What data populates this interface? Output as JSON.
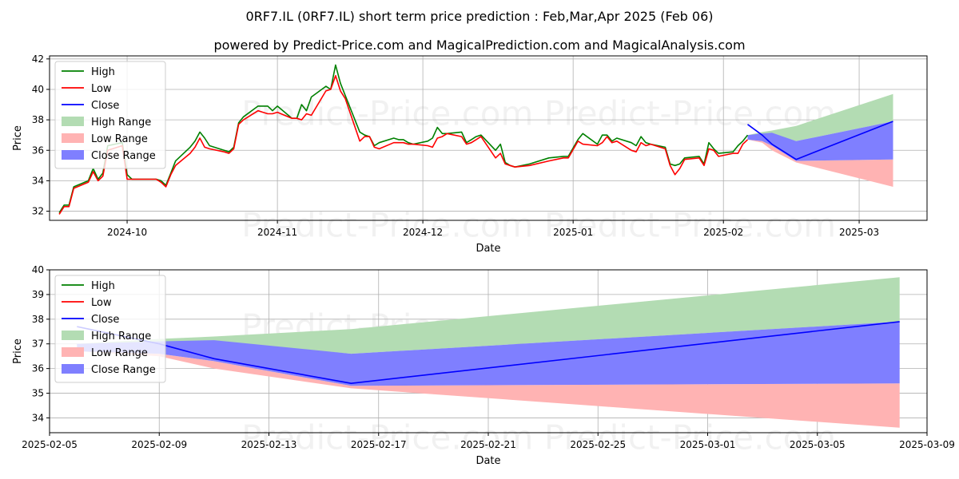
{
  "chart_data": [
    {
      "type": "line",
      "title": "0RF7.IL (0RF7.IL) short term price prediction : Feb,Mar,Apr 2025 (Feb 06)",
      "subtitle": "powered by Predict-Price.com and MagicalPrediction.com and MagicalAnalysis.com",
      "watermark": "Predict-Price.com",
      "xlabel": "Date",
      "ylabel": "Price",
      "xlim": [
        "2024-09-15",
        "2025-03-15"
      ],
      "ylim": [
        31.4,
        42.2
      ],
      "x_ticks": [
        "2024-10",
        "2024-11",
        "2024-12",
        "2025-01",
        "2025-02",
        "2025-03"
      ],
      "x_tick_dates": [
        "2024-10-01",
        "2024-11-01",
        "2024-12-01",
        "2025-01-01",
        "2025-02-01",
        "2025-03-01"
      ],
      "y_ticks": [
        32,
        34,
        36,
        38,
        40,
        42
      ],
      "grid": true,
      "legend_position": "upper-left",
      "legend": [
        "High",
        "Low",
        "Close",
        "High Range",
        "Low Range",
        "Close Range"
      ],
      "colors": {
        "high": "#008000",
        "low": "#ff0000",
        "close": "#0000ff",
        "high_range": "#b3dcb3",
        "low_range": "#ffb3b3",
        "close_range": "#7f7fff"
      },
      "series": [
        {
          "name": "High",
          "x": [
            "2024-09-17",
            "2024-09-18",
            "2024-09-19",
            "2024-09-20",
            "2024-09-23",
            "2024-09-24",
            "2024-09-25",
            "2024-09-26",
            "2024-09-27",
            "2024-09-30",
            "2024-10-01",
            "2024-10-02",
            "2024-10-03",
            "2024-10-07",
            "2024-10-08",
            "2024-10-09",
            "2024-10-10",
            "2024-10-11",
            "2024-10-14",
            "2024-10-15",
            "2024-10-16",
            "2024-10-17",
            "2024-10-18",
            "2024-10-21",
            "2024-10-22",
            "2024-10-23",
            "2024-10-24",
            "2024-10-25",
            "2024-10-28",
            "2024-10-29",
            "2024-10-30",
            "2024-10-31",
            "2024-11-01",
            "2024-11-04",
            "2024-11-05",
            "2024-11-06",
            "2024-11-07",
            "2024-11-08",
            "2024-11-11",
            "2024-11-12",
            "2024-11-13",
            "2024-11-14",
            "2024-11-15",
            "2024-11-18",
            "2024-11-19",
            "2024-11-20",
            "2024-11-21",
            "2024-11-22",
            "2024-11-25",
            "2024-11-26",
            "2024-11-27",
            "2024-11-28",
            "2024-11-29",
            "2024-12-02",
            "2024-12-03",
            "2024-12-04",
            "2024-12-05",
            "2024-12-06",
            "2024-12-09",
            "2024-12-10",
            "2024-12-11",
            "2024-12-12",
            "2024-12-13",
            "2024-12-16",
            "2024-12-17",
            "2024-12-18",
            "2024-12-19",
            "2024-12-20",
            "2024-12-23",
            "2024-12-27",
            "2024-12-30",
            "2024-12-31",
            "2025-01-02",
            "2025-01-03",
            "2025-01-06",
            "2025-01-07",
            "2025-01-08",
            "2025-01-09",
            "2025-01-10",
            "2025-01-13",
            "2025-01-14",
            "2025-01-15",
            "2025-01-16",
            "2025-01-17",
            "2025-01-20",
            "2025-01-21",
            "2025-01-22",
            "2025-01-23",
            "2025-01-24",
            "2025-01-27",
            "2025-01-28",
            "2025-01-29",
            "2025-01-30",
            "2025-01-31",
            "2025-02-03",
            "2025-02-04",
            "2025-02-05",
            "2025-02-06"
          ],
          "y": [
            31.9,
            32.4,
            32.4,
            33.6,
            34.0,
            34.8,
            34.1,
            34.5,
            36.3,
            36.5,
            34.4,
            34.1,
            34.1,
            34.1,
            34.0,
            33.7,
            34.5,
            35.3,
            36.2,
            36.6,
            37.2,
            36.8,
            36.3,
            36.0,
            35.9,
            36.2,
            37.8,
            38.2,
            38.9,
            38.9,
            38.9,
            38.6,
            38.9,
            38.1,
            38.1,
            39.0,
            38.6,
            39.5,
            40.2,
            40.0,
            41.6,
            40.4,
            39.6,
            37.2,
            37.0,
            36.9,
            36.3,
            36.5,
            36.8,
            36.7,
            36.7,
            36.5,
            36.4,
            36.6,
            36.8,
            37.5,
            37.1,
            37.1,
            37.2,
            36.5,
            36.7,
            36.9,
            37.0,
            36.0,
            36.4,
            35.2,
            35.0,
            34.9,
            35.1,
            35.5,
            35.6,
            35.6,
            36.7,
            37.1,
            36.4,
            37.0,
            37.0,
            36.6,
            36.8,
            36.5,
            36.3,
            36.9,
            36.5,
            36.4,
            36.2,
            35.1,
            35.0,
            35.1,
            35.5,
            35.6,
            35.1,
            36.5,
            36.1,
            35.8,
            35.9,
            36.3,
            36.6,
            37.0
          ]
        },
        {
          "name": "Low",
          "x": [
            "2024-09-17",
            "2024-09-18",
            "2024-09-19",
            "2024-09-20",
            "2024-09-23",
            "2024-09-24",
            "2024-09-25",
            "2024-09-26",
            "2024-09-27",
            "2024-09-30",
            "2024-10-01",
            "2024-10-02",
            "2024-10-03",
            "2024-10-07",
            "2024-10-08",
            "2024-10-09",
            "2024-10-10",
            "2024-10-11",
            "2024-10-14",
            "2024-10-15",
            "2024-10-16",
            "2024-10-17",
            "2024-10-18",
            "2024-10-21",
            "2024-10-22",
            "2024-10-23",
            "2024-10-24",
            "2024-10-25",
            "2024-10-28",
            "2024-10-29",
            "2024-10-30",
            "2024-10-31",
            "2024-11-01",
            "2024-11-04",
            "2024-11-05",
            "2024-11-06",
            "2024-11-07",
            "2024-11-08",
            "2024-11-11",
            "2024-11-12",
            "2024-11-13",
            "2024-11-14",
            "2024-11-15",
            "2024-11-18",
            "2024-11-19",
            "2024-11-20",
            "2024-11-21",
            "2024-11-22",
            "2024-11-25",
            "2024-11-26",
            "2024-11-27",
            "2024-11-28",
            "2024-11-29",
            "2024-12-02",
            "2024-12-03",
            "2024-12-04",
            "2024-12-05",
            "2024-12-06",
            "2024-12-09",
            "2024-12-10",
            "2024-12-11",
            "2024-12-12",
            "2024-12-13",
            "2024-12-16",
            "2024-12-17",
            "2024-12-18",
            "2024-12-19",
            "2024-12-20",
            "2024-12-23",
            "2024-12-27",
            "2024-12-30",
            "2024-12-31",
            "2025-01-02",
            "2025-01-03",
            "2025-01-06",
            "2025-01-07",
            "2025-01-08",
            "2025-01-09",
            "2025-01-10",
            "2025-01-13",
            "2025-01-14",
            "2025-01-15",
            "2025-01-16",
            "2025-01-17",
            "2025-01-20",
            "2025-01-21",
            "2025-01-22",
            "2025-01-23",
            "2025-01-24",
            "2025-01-27",
            "2025-01-28",
            "2025-01-29",
            "2025-01-30",
            "2025-01-31",
            "2025-02-03",
            "2025-02-04",
            "2025-02-05",
            "2025-02-06"
          ],
          "y": [
            31.8,
            32.3,
            32.3,
            33.5,
            33.9,
            34.6,
            34.0,
            34.3,
            36.0,
            36.3,
            34.1,
            34.1,
            34.1,
            34.1,
            33.9,
            33.6,
            34.4,
            35.0,
            35.8,
            36.2,
            36.8,
            36.2,
            36.1,
            35.9,
            35.8,
            36.1,
            37.7,
            38.0,
            38.6,
            38.5,
            38.4,
            38.4,
            38.5,
            38.1,
            38.1,
            38.0,
            38.4,
            38.3,
            39.9,
            40.0,
            40.9,
            39.9,
            39.4,
            36.6,
            36.9,
            36.9,
            36.2,
            36.1,
            36.5,
            36.5,
            36.5,
            36.4,
            36.4,
            36.3,
            36.2,
            36.8,
            36.9,
            37.1,
            36.9,
            36.4,
            36.5,
            36.7,
            36.9,
            35.5,
            35.8,
            35.1,
            35.0,
            34.9,
            35.0,
            35.3,
            35.5,
            35.5,
            36.6,
            36.4,
            36.3,
            36.5,
            36.9,
            36.5,
            36.6,
            36.0,
            35.9,
            36.5,
            36.3,
            36.4,
            36.1,
            35.0,
            34.4,
            34.8,
            35.4,
            35.5,
            35.0,
            36.1,
            36.0,
            35.6,
            35.8,
            35.8,
            36.4,
            36.7
          ]
        },
        {
          "name": "Close",
          "x": [
            "2025-02-06",
            "2025-02-09",
            "2025-02-11",
            "2025-02-16",
            "2025-03-08"
          ],
          "y": [
            37.7,
            37.0,
            36.4,
            35.4,
            37.9
          ]
        }
      ],
      "bands": [
        {
          "name": "High Range",
          "x": [
            "2025-02-06",
            "2025-02-09",
            "2025-02-11",
            "2025-02-16",
            "2025-03-08"
          ],
          "lower": [
            37.0,
            37.0,
            37.1,
            36.6,
            37.9
          ],
          "upper": [
            37.0,
            37.2,
            37.3,
            37.6,
            39.7
          ]
        },
        {
          "name": "Low Range",
          "x": [
            "2025-02-06",
            "2025-02-09",
            "2025-02-11",
            "2025-02-16",
            "2025-03-08"
          ],
          "lower": [
            36.7,
            36.5,
            36.0,
            35.2,
            33.6
          ],
          "upper": [
            36.7,
            36.6,
            36.3,
            35.3,
            35.4
          ]
        },
        {
          "name": "Close Range",
          "x": [
            "2025-02-06",
            "2025-02-09",
            "2025-02-11",
            "2025-02-16",
            "2025-03-08"
          ],
          "lower": [
            36.7,
            36.6,
            36.3,
            35.3,
            35.4
          ],
          "upper": [
            37.0,
            37.1,
            37.15,
            36.6,
            37.9
          ]
        }
      ]
    },
    {
      "type": "line",
      "title": "",
      "watermark": "Predict-Price.com",
      "xlabel": "Date",
      "ylabel": "Price",
      "xlim": [
        "2025-02-05",
        "2025-03-09"
      ],
      "ylim": [
        33.4,
        40.0
      ],
      "x_ticks": [
        "2025-02-05",
        "2025-02-09",
        "2025-02-13",
        "2025-02-17",
        "2025-02-21",
        "2025-02-25",
        "2025-03-01",
        "2025-03-05",
        "2025-03-09"
      ],
      "y_ticks": [
        34,
        35,
        36,
        37,
        38,
        39,
        40
      ],
      "grid": true,
      "legend_position": "upper-left",
      "legend": [
        "High",
        "Low",
        "Close",
        "High Range",
        "Low Range",
        "Close Range"
      ],
      "colors": {
        "high": "#008000",
        "low": "#ff0000",
        "close": "#0000ff",
        "high_range": "#b3dcb3",
        "low_range": "#ffb3b3",
        "close_range": "#7f7fff"
      },
      "series": [
        {
          "name": "Close",
          "x": [
            "2025-02-06",
            "2025-02-09",
            "2025-02-11",
            "2025-02-16",
            "2025-03-08"
          ],
          "y": [
            37.7,
            37.0,
            36.4,
            35.4,
            37.9
          ]
        }
      ],
      "bands": [
        {
          "name": "High Range",
          "x": [
            "2025-02-06",
            "2025-02-09",
            "2025-02-11",
            "2025-02-16",
            "2025-03-08"
          ],
          "lower": [
            37.0,
            37.0,
            37.1,
            36.6,
            37.9
          ],
          "upper": [
            37.0,
            37.2,
            37.3,
            37.6,
            39.7
          ]
        },
        {
          "name": "Low Range",
          "x": [
            "2025-02-06",
            "2025-02-09",
            "2025-02-11",
            "2025-02-16",
            "2025-03-08"
          ],
          "lower": [
            36.7,
            36.5,
            36.0,
            35.2,
            33.6
          ],
          "upper": [
            36.7,
            36.6,
            36.3,
            35.3,
            35.4
          ]
        },
        {
          "name": "Close Range",
          "x": [
            "2025-02-06",
            "2025-02-09",
            "2025-02-11",
            "2025-02-16",
            "2025-03-08"
          ],
          "lower": [
            36.7,
            36.6,
            36.3,
            35.3,
            35.4
          ],
          "upper": [
            37.0,
            37.1,
            37.15,
            36.6,
            37.9
          ]
        }
      ]
    }
  ]
}
